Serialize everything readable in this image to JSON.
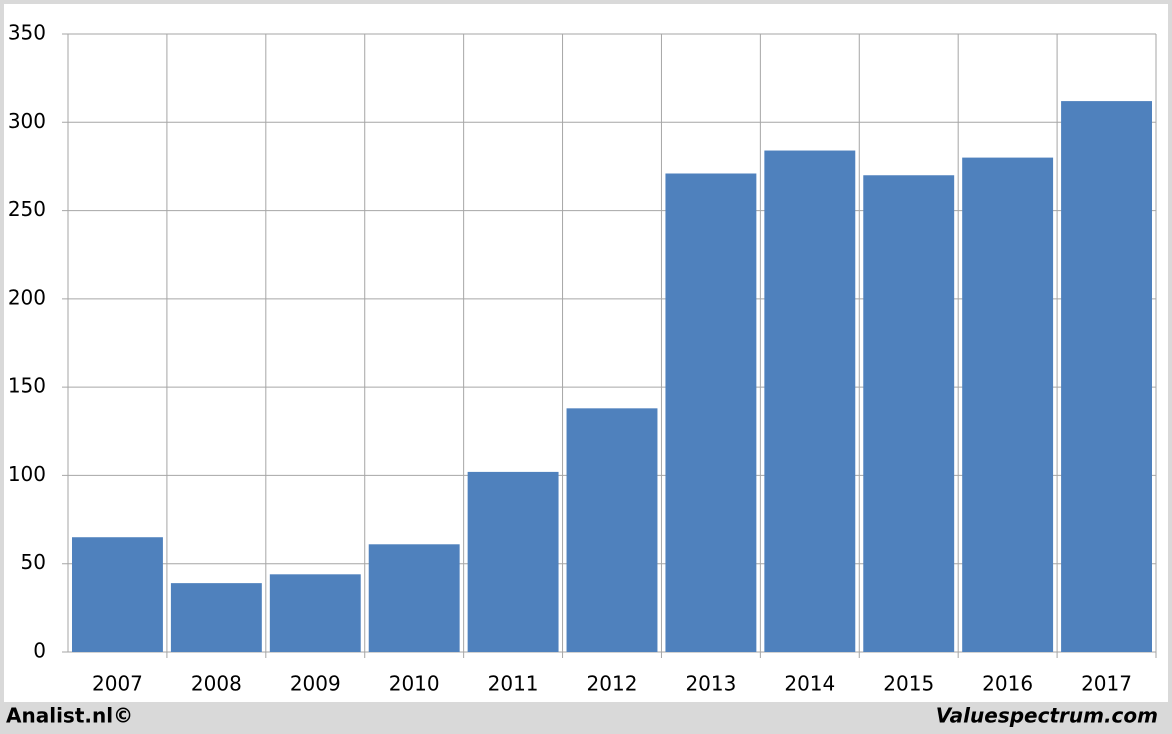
{
  "chart_data": {
    "type": "bar",
    "categories": [
      "2007",
      "2008",
      "2009",
      "2010",
      "2011",
      "2012",
      "2013",
      "2014",
      "2015",
      "2016",
      "2017"
    ],
    "values": [
      65,
      39,
      44,
      61,
      102,
      138,
      271,
      284,
      270,
      280,
      312
    ],
    "color": "#4f81bd",
    "ylim": [
      0,
      350
    ],
    "yticks": [
      0,
      50,
      100,
      150,
      200,
      250,
      300,
      350
    ],
    "grid": true
  },
  "footer": {
    "left": "Analist.nl©",
    "right": "Valuespectrum.com"
  }
}
